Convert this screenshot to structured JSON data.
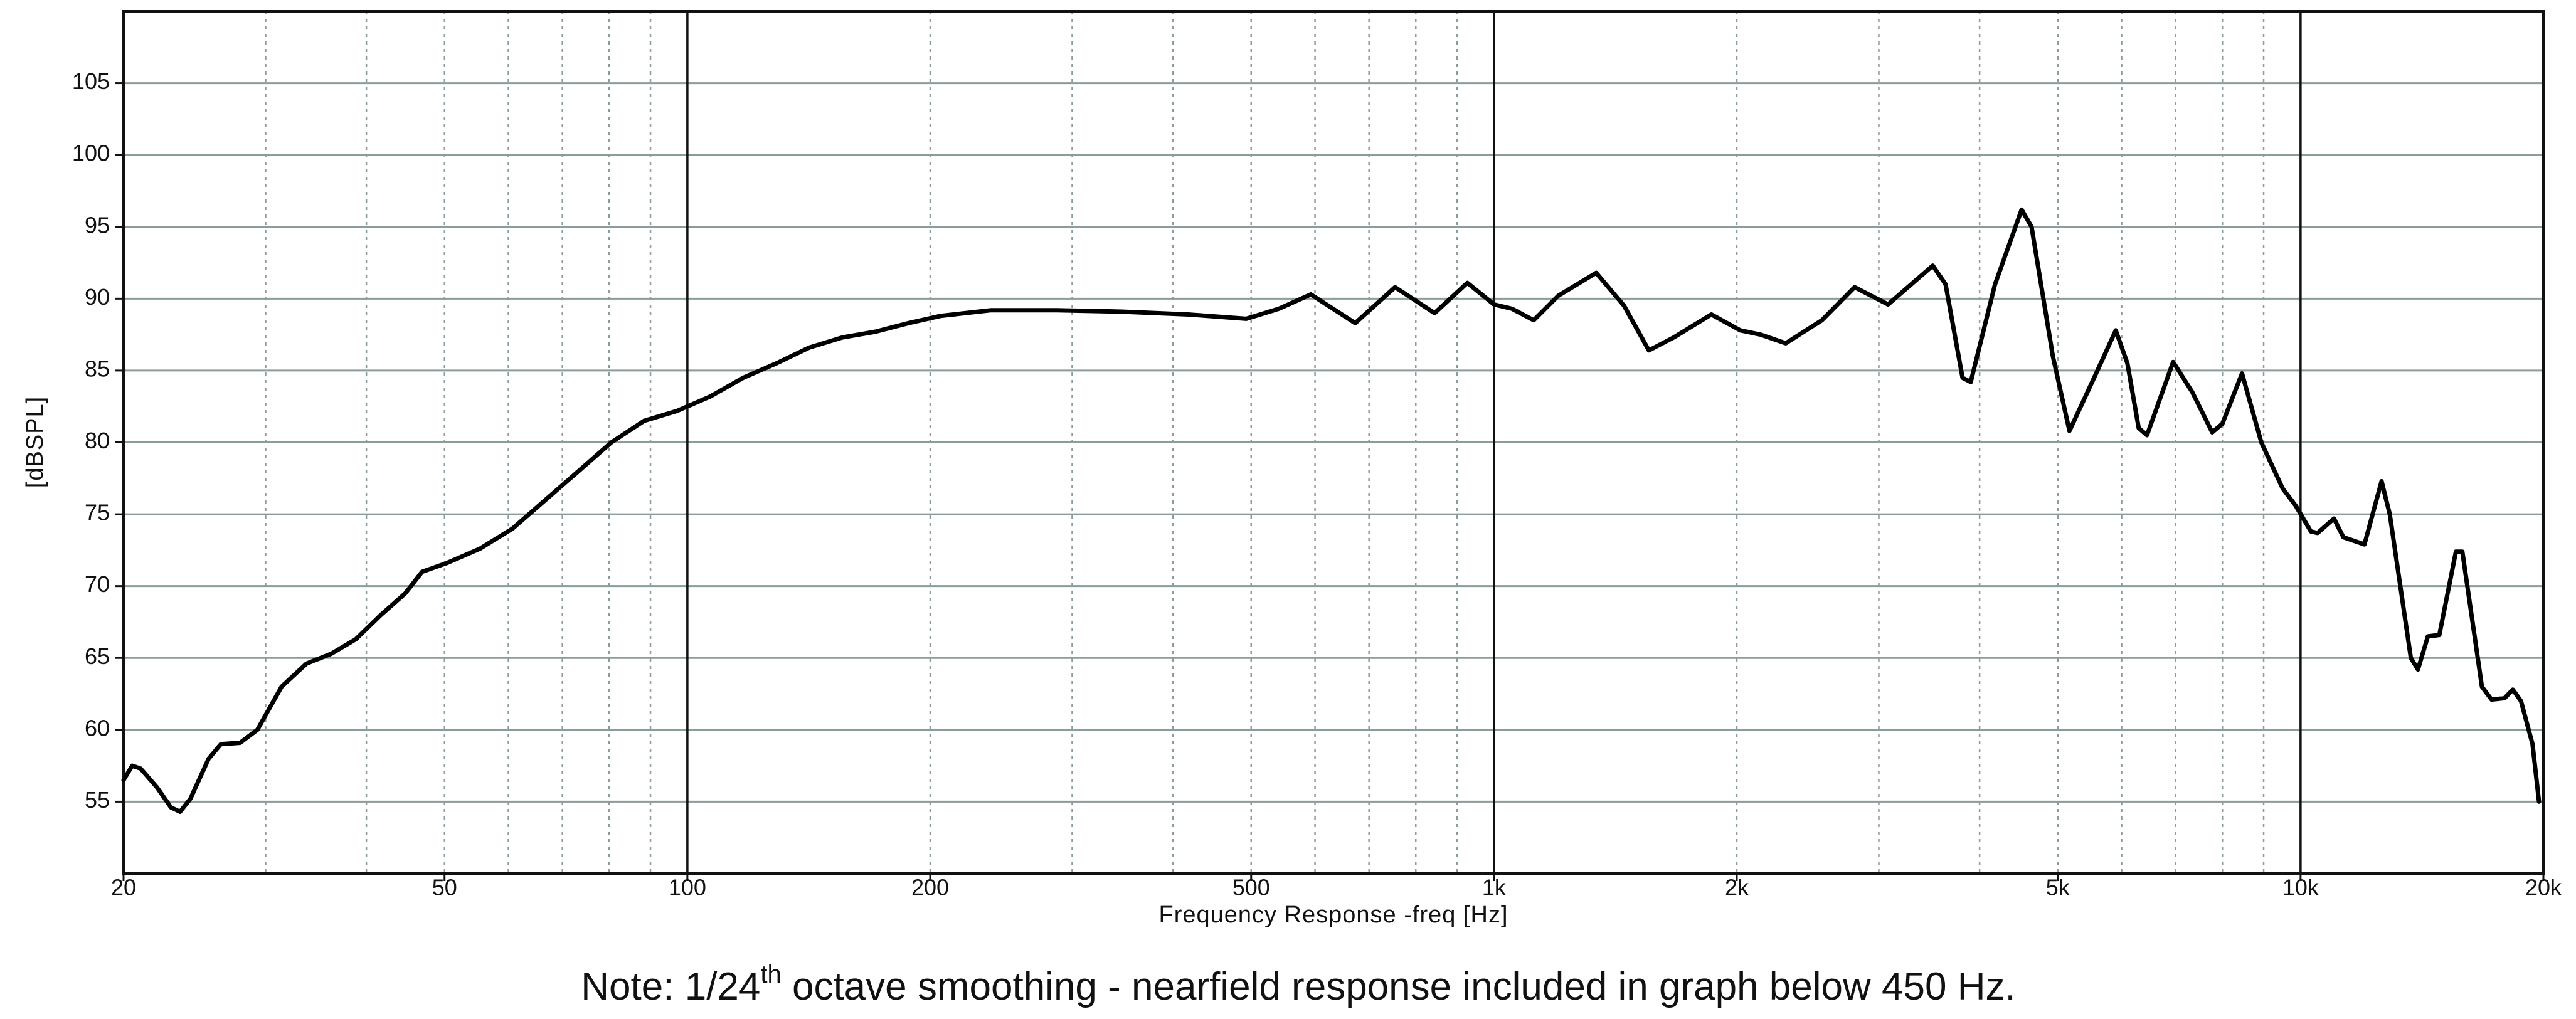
{
  "chart_data": {
    "type": "line",
    "xlabel": "Frequency Response -freq [Hz]",
    "ylabel": "[dBSPL]",
    "annotation": [
      "Note: 1/24",
      "th",
      " octave smoothing - nearfield response included in graph below 450 Hz."
    ],
    "xscale": "log",
    "xlim": [
      20,
      20000
    ],
    "ylim": [
      50,
      110
    ],
    "xticks": [
      20,
      50,
      100,
      200,
      500,
      {
        "value": 1000,
        "label": "1k"
      },
      {
        "value": 2000,
        "label": "2k"
      },
      {
        "value": 5000,
        "label": "5k"
      },
      {
        "value": 10000,
        "label": "10k"
      },
      {
        "value": 20000,
        "label": "20k"
      }
    ],
    "yticks": [
      55,
      60,
      65,
      70,
      75,
      80,
      85,
      90,
      95,
      100,
      105
    ],
    "xgrid": [
      30,
      40,
      50,
      60,
      70,
      80,
      90,
      200,
      300,
      400,
      500,
      600,
      700,
      800,
      900,
      2000,
      3000,
      4000,
      5000,
      6000,
      7000,
      8000,
      9000
    ],
    "xgrid_major": [
      100,
      1000,
      10000
    ],
    "grid": true,
    "series": [
      {
        "color": "#000000",
        "x": [
          20,
          20.5,
          21,
          22,
          22.9,
          23.5,
          24.2,
          25.5,
          26.4,
          27.9,
          29.3,
          31.4,
          33.7,
          36.2,
          38.8,
          41.7,
          44.7,
          46.9,
          50.3,
          55.3,
          60.7,
          66.7,
          73.3,
          80.5,
          88.4,
          97.2,
          106.8,
          117.3,
          128.9,
          141.6,
          155.6,
          171,
          188,
          206,
          238,
          287,
          346,
          418,
          493,
          541,
          593,
          673,
          754,
          844,
          927,
          1000,
          1053,
          1120,
          1201,
          1339,
          1450,
          1556,
          1670,
          1860,
          2020,
          2140,
          2300,
          2550,
          2800,
          3080,
          3500,
          3630,
          3810,
          3900,
          4180,
          4510,
          4640,
          4930,
          5170,
          5600,
          5900,
          6100,
          6300,
          6450,
          6950,
          7340,
          7770,
          8000,
          8460,
          8940,
          9500,
          9860,
          10300,
          10500,
          11000,
          11300,
          12000,
          12600,
          12900,
          13700,
          13980,
          14380,
          14860,
          15580,
          15870,
          16780,
          17250,
          17900,
          18330,
          18760,
          19390,
          19750
        ],
        "values": [
          56.5,
          57.5,
          57.3,
          56,
          54.6,
          54.3,
          55.2,
          58,
          59,
          59.1,
          60,
          63,
          64.6,
          65.3,
          66.3,
          68,
          69.5,
          71,
          71.6,
          72.6,
          74,
          76,
          78,
          80,
          81.5,
          82.2,
          83.2,
          84.5,
          85.5,
          86.6,
          87.3,
          87.7,
          88.3,
          88.8,
          89.2,
          89.2,
          89.1,
          88.9,
          88.6,
          89.3,
          90.3,
          88.3,
          90.8,
          89,
          91.1,
          89.6,
          89.3,
          88.5,
          90.2,
          91.8,
          89.5,
          86.4,
          87.3,
          88.9,
          87.8,
          87.5,
          86.9,
          88.5,
          90.8,
          89.6,
          92.3,
          91,
          84.5,
          84.2,
          91,
          96.2,
          95,
          86,
          80.8,
          85,
          87.8,
          85.5,
          81,
          80.5,
          85.6,
          83.5,
          80.7,
          81.3,
          84.8,
          80,
          76.8,
          75.6,
          73.8,
          73.7,
          74.7,
          73.4,
          72.9,
          77.3,
          75,
          65,
          64.2,
          66.5,
          66.6,
          72.4,
          72.4,
          63,
          62.1,
          62.2,
          62.8,
          62,
          59,
          55
        ]
      }
    ]
  }
}
